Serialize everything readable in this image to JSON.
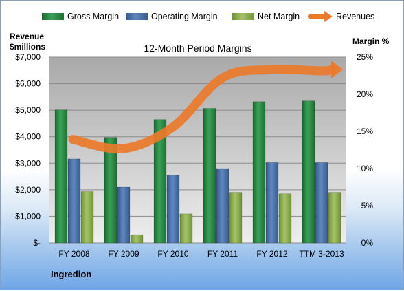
{
  "chart_data": {
    "type": "bar",
    "title": "12-Month Period Margins",
    "categories": [
      "FY 2008",
      "FY 2009",
      "FY 2010",
      "FY 2011",
      "FY 2012",
      "TTM 3-2013"
    ],
    "series": [
      {
        "name": "Gross Margin",
        "kind": "bar",
        "axis": "right",
        "values": [
          17.9,
          14.2,
          16.6,
          18.1,
          19.0,
          19.1
        ],
        "color": "#2e8a44"
      },
      {
        "name": "Operating Margin",
        "kind": "bar",
        "axis": "right",
        "values": [
          11.3,
          7.5,
          9.1,
          10.0,
          10.8,
          10.8
        ],
        "color": "#4a74ad"
      },
      {
        "name": "Net Margin",
        "kind": "bar",
        "axis": "right",
        "values": [
          6.9,
          1.1,
          3.9,
          6.8,
          6.6,
          6.8
        ],
        "color": "#8db050"
      },
      {
        "name": "Revenues",
        "kind": "line",
        "axis": "left",
        "values": [
          3900,
          3550,
          4370,
          6220,
          6530,
          6480
        ],
        "color": "#ec7a2a"
      }
    ],
    "y_left": {
      "label_line1": "Revenue",
      "label_line2": "$millions",
      "min": 0,
      "max": 7000,
      "ticks": [
        "$-",
        "$1,000",
        "$2,000",
        "$3,000",
        "$4,000",
        "$5,000",
        "$6,000",
        "$7,000"
      ]
    },
    "y_right": {
      "label": "Margin %",
      "min": 0,
      "max": 25,
      "ticks": [
        "0%",
        "5%",
        "10%",
        "15%",
        "20%",
        "25%"
      ]
    },
    "legend_position": "top",
    "grid": true
  },
  "footer": {
    "company": "Ingredion"
  }
}
